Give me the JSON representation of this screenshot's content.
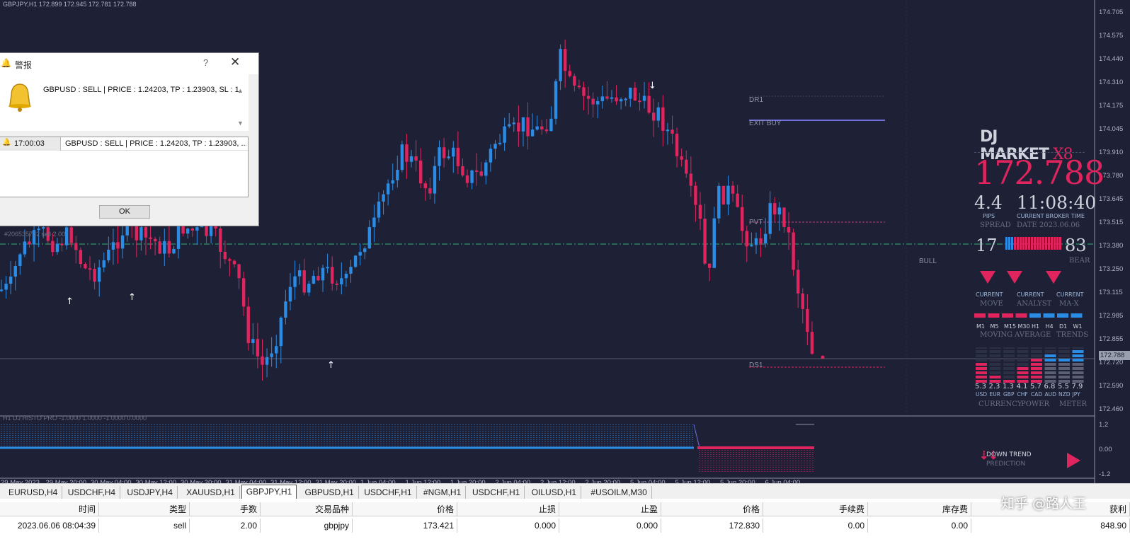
{
  "chart": {
    "header": "GBPJPY,H1  172.899 172.945 172.781 172.788",
    "price_axis": [
      "174.705",
      "174.575",
      "174.440",
      "174.310",
      "174.175",
      "174.045",
      "173.910",
      "173.780",
      "173.645",
      "173.515",
      "173.380",
      "173.250",
      "173.115",
      "172.985",
      "172.855",
      "172.720",
      "172.590",
      "172.460"
    ],
    "current_price_box": "172.788",
    "time_axis": [
      "29 May 2023",
      "29 May 20:00",
      "30 May 04:00",
      "30 May 12:00",
      "30 May 20:00",
      "31 May 04:00",
      "31 May 12:00",
      "31 May 20:00",
      "1 Jun 04:00",
      "1 Jun 12:00",
      "1 Jun 20:00",
      "2 Jun 04:00",
      "2 Jun 12:00",
      "2 Jun 20:00",
      "5 Jun 04:00",
      "5 Jun 12:00",
      "5 Jun 20:00",
      "6 Jun 04:00"
    ],
    "levels": {
      "dr1": "DR1",
      "exit_buy": "EXIT BUY",
      "pvt": "PVT",
      "ds1": "DS1",
      "bull": "BULL"
    },
    "order_line": "#206535722 sell 2.00",
    "indicator_label": "H1 DJ HISTO PRO  -1.0000 1.0000 -1.0000 0.0000",
    "indicator_axis": [
      "1.2",
      "0.00",
      "-1.2"
    ],
    "colors": {
      "bull": "#2b8ce6",
      "bear": "#e0245e",
      "bg": "#1e2135"
    }
  },
  "dashboard": {
    "logo": "DJ MARKET",
    "logo_suffix": "X8",
    "price": "172.788",
    "spread_value": "4.4",
    "broker_time": "11:08:40",
    "pips_label": "PIPS",
    "spread_label": "SPREAD",
    "broker_time_label": "CURRENT BROKER TIME",
    "date_label": "DATE 2023.06.06",
    "bull_count": "17",
    "bear_count": "83",
    "bear_label": "BEAR",
    "signals": [
      {
        "top": "CURRENT",
        "bottom": "MOVE"
      },
      {
        "top": "CURRENT",
        "bottom": "ANALYST"
      },
      {
        "top": "CURRENT",
        "bottom": "MA-X"
      }
    ],
    "timeframes": [
      "M1",
      "M5",
      "M15",
      "M30",
      "H1",
      "H4",
      "D1",
      "W1"
    ],
    "tf_footer": [
      "MOVING",
      "AVERAGE",
      "TRENDS"
    ],
    "currency_values": [
      "5.3",
      "2.3",
      "1.3",
      "4.1",
      "5.7",
      "6.8",
      "5.5",
      "7.9"
    ],
    "currencies": [
      "USD",
      "EUR",
      "GBP",
      "CHF",
      "CAD",
      "AUD",
      "NZD",
      "JPY"
    ],
    "cp_footer": [
      "CURRENCY",
      "POWER",
      "METER"
    ],
    "trend_label": "DOWN  TREND",
    "trend_sub": "PREDICTION"
  },
  "alert": {
    "title": "警报",
    "help": "?",
    "message": "GBPUSD : SELL   | PRICE :  1.24203, TP : 1.23903, SL : 1.",
    "list_time": "17:00:03",
    "list_message": "GBPUSD : SELL   | PRICE :  1.24203, TP : 1.23903, ...",
    "ok_label": "OK"
  },
  "tabs": [
    "EURUSD,H4",
    "USDCHF,H4",
    "USDJPY,H4",
    "XAUUSD,H1",
    "GBPJPY,H1",
    "GBPUSD,H1",
    "USDCHF,H1",
    "#NGM,H1",
    "USDCHF,H1",
    "OILUSD,H1",
    "#USOILM,M30"
  ],
  "active_tab": "GBPJPY,H1",
  "table": {
    "headers": [
      "时间",
      "类型",
      "手数",
      "交易品种",
      "价格",
      "止损",
      "止盈",
      "价格",
      "手续费",
      "库存费",
      "获利"
    ],
    "row": [
      "2023.06.06 08:04:39",
      "sell",
      "2.00",
      "gbpjpy",
      "173.421",
      "0.000",
      "0.000",
      "172.830",
      "0.00",
      "0.00",
      "848.90"
    ]
  },
  "watermark": "知乎 @路人王"
}
